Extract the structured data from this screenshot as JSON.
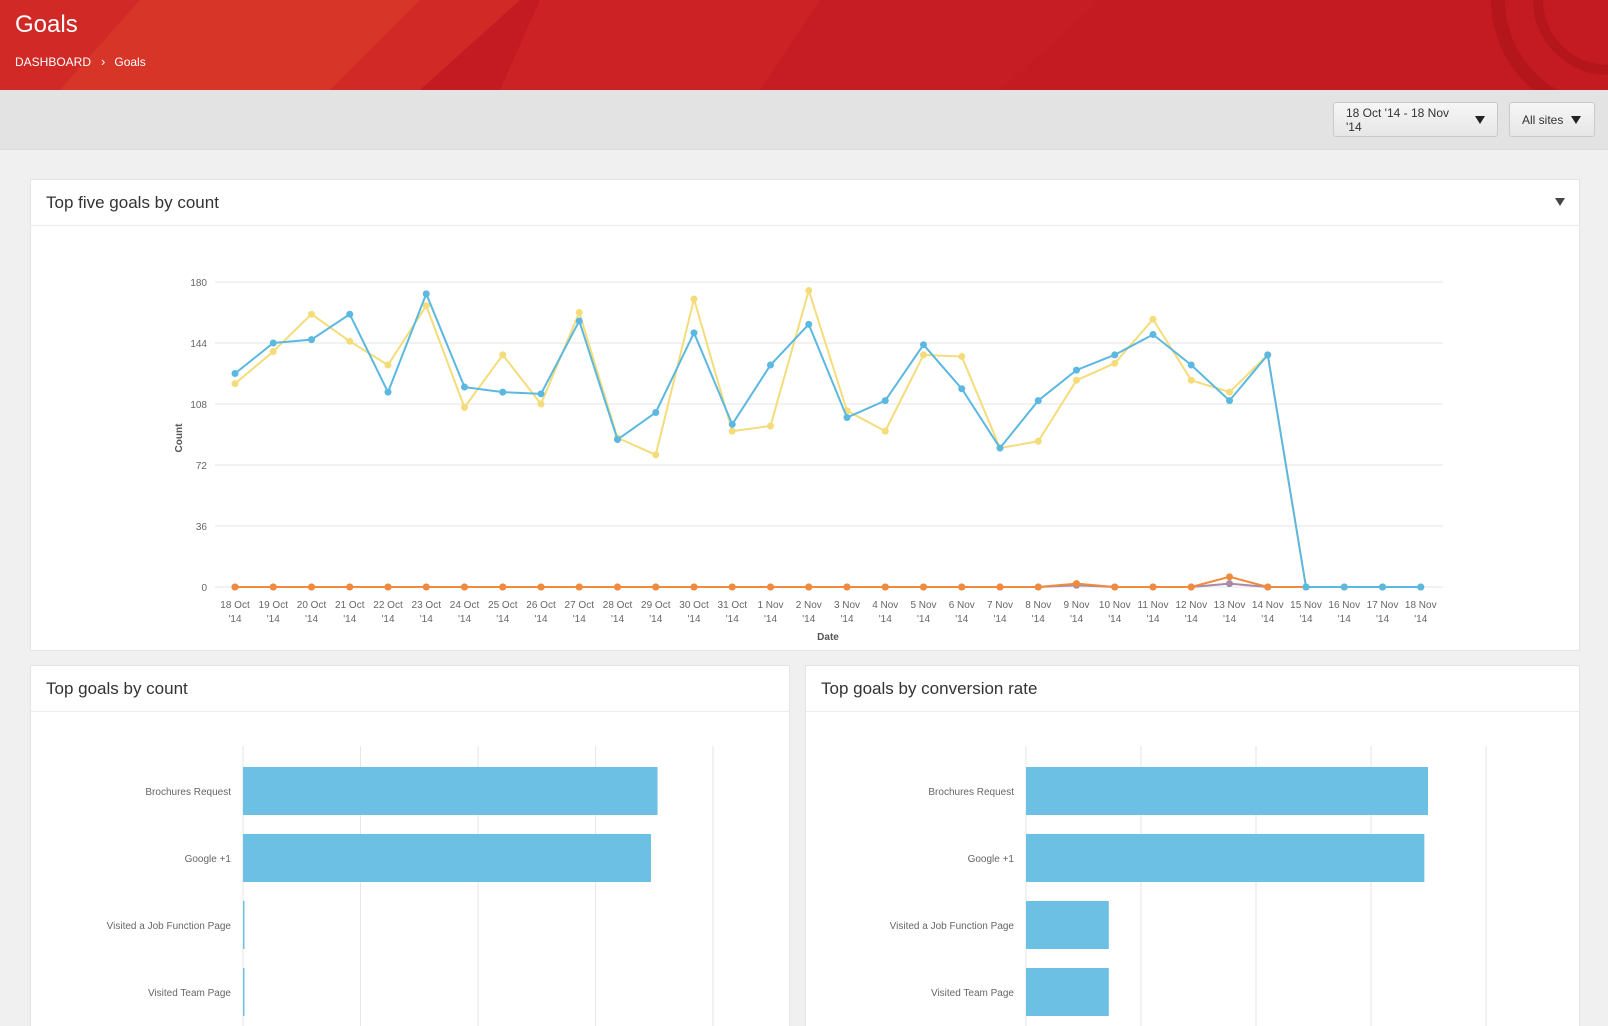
{
  "header": {
    "title": "Goals",
    "breadcrumb": [
      "DASHBOARD",
      "Goals"
    ],
    "brand_color": "#c41a22"
  },
  "toolbar": {
    "date_range": "18 Oct '14 - 18 Nov '14",
    "site_filter": "All sites"
  },
  "line_panel": {
    "title": "Top five goals by count"
  },
  "count_panel": {
    "title": "Top goals by count"
  },
  "rate_panel": {
    "title": "Top goals by conversion rate"
  },
  "chart_data": [
    {
      "type": "line",
      "title": "",
      "xlabel": "Date",
      "ylabel": "Count",
      "ylim": [
        0,
        180
      ],
      "yticks": [
        0,
        36,
        72,
        108,
        144,
        180
      ],
      "grid": true,
      "legend": "bottom",
      "categories": [
        "18 Oct '14",
        "19 Oct '14",
        "20 Oct '14",
        "21 Oct '14",
        "22 Oct '14",
        "23 Oct '14",
        "24 Oct '14",
        "25 Oct '14",
        "26 Oct '14",
        "27 Oct '14",
        "28 Oct '14",
        "29 Oct '14",
        "30 Oct '14",
        "31 Oct '14",
        "1 Nov '14",
        "2 Nov '14",
        "3 Nov '14",
        "4 Nov '14",
        "5 Nov '14",
        "6 Nov '14",
        "7 Nov '14",
        "8 Nov '14",
        "9 Nov '14",
        "10 Nov '14",
        "11 Nov '14",
        "12 Nov '14",
        "13 Nov '14",
        "14 Nov '14",
        "15 Nov '14",
        "16 Nov '14",
        "17 Nov '14",
        "18 Nov '14"
      ],
      "series": [
        {
          "name": "Brochures Request",
          "color": "#5bb8e0",
          "values": [
            126,
            144,
            146,
            161,
            115,
            173,
            118,
            115,
            114,
            157,
            87,
            103,
            150,
            96,
            131,
            155,
            100,
            110,
            143,
            117,
            82,
            110,
            128,
            137,
            149,
            131,
            110,
            137,
            0,
            0,
            0,
            0
          ]
        },
        {
          "name": "Google +1",
          "color": "#f5dc7a",
          "values": [
            120,
            139,
            161,
            145,
            131,
            166,
            106,
            137,
            108,
            162,
            88,
            78,
            170,
            92,
            95,
            175,
            104,
            92,
            137,
            136,
            82,
            86,
            122,
            132,
            158,
            122,
            115,
            137,
            0,
            0,
            0,
            0
          ]
        },
        {
          "name": "Visited a Job Function Page",
          "color": "#f08a3c",
          "values": [
            0,
            0,
            0,
            0,
            0,
            0,
            0,
            0,
            0,
            0,
            0,
            0,
            0,
            0,
            0,
            0,
            0,
            0,
            0,
            0,
            0,
            0,
            2,
            0,
            0,
            0,
            6,
            0,
            0,
            0,
            0,
            0
          ]
        },
        {
          "name": "Visited Team Page",
          "color": "#a88aa8",
          "values": [
            0,
            0,
            0,
            0,
            0,
            0,
            0,
            0,
            0,
            0,
            0,
            0,
            0,
            0,
            0,
            0,
            0,
            0,
            0,
            0,
            0,
            0,
            1,
            0,
            0,
            0,
            2,
            0,
            0,
            0,
            0,
            0
          ]
        }
      ]
    },
    {
      "type": "bar",
      "orientation": "horizontal",
      "title": "",
      "categories": [
        "Brochures Request",
        "Google +1",
        "Visited a Job Function Page",
        "Visited Team Page"
      ],
      "values": [
        4410,
        4340,
        10,
        6
      ],
      "xlim": [
        0,
        5000
      ],
      "grid": true,
      "color": "#6bc0e3"
    },
    {
      "type": "bar",
      "orientation": "horizontal",
      "title": "",
      "categories": [
        "Brochures Request",
        "Google +1",
        "Visited a Job Function Page",
        "Visited Team Page"
      ],
      "values": [
        0.437,
        0.433,
        0.09,
        0.09
      ],
      "xlim": [
        0,
        0.5
      ],
      "grid": true,
      "color": "#6bc0e3"
    }
  ]
}
